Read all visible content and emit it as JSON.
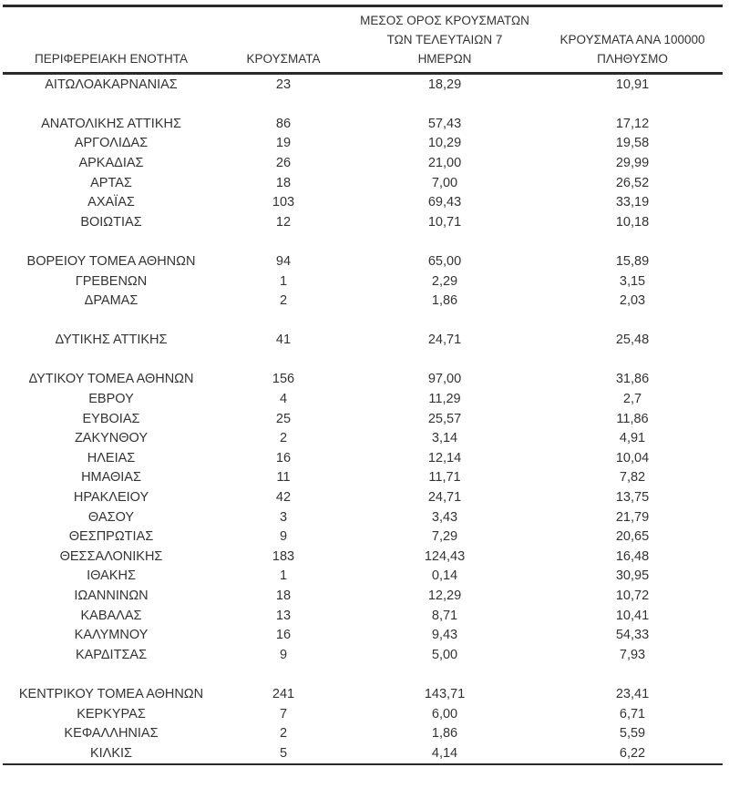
{
  "colors": {
    "background": "#ffffff",
    "text": "#333333",
    "rule": "#2a2a2a"
  },
  "table": {
    "columns": [
      {
        "key": "name",
        "label": "ΠΕΡΙΦΕΡΕΙΑΚΗ ΕΝΟΤΗΤΑ"
      },
      {
        "key": "cases",
        "label": "ΚΡΟΥΣΜΑΤΑ"
      },
      {
        "key": "avg7",
        "label": "ΜΕΣΟΣ ΟΡΟΣ ΚΡΟΥΣΜΑΤΩΝ\nΤΩΝ ΤΕΛΕΥΤΑΙΩΝ 7\nΗΜΕΡΩΝ"
      },
      {
        "key": "per100k",
        "label": "ΚΡΟΥΣΜΑΤΑ ΑΝΑ 100000\nΠΛΗΘΥΣΜΟ"
      }
    ],
    "rows": [
      {
        "name": "ΑΙΤΩΛΟΑΚΑΡΝΑΝΙΑΣ",
        "cases": "23",
        "avg7": "18,29",
        "per100k": "10,91"
      },
      {
        "spacer": true
      },
      {
        "name": "ΑΝΑΤΟΛΙΚΗΣ ΑΤΤΙΚΗΣ",
        "cases": "86",
        "avg7": "57,43",
        "per100k": "17,12"
      },
      {
        "name": "ΑΡΓΟΛΙΔΑΣ",
        "cases": "19",
        "avg7": "10,29",
        "per100k": "19,58"
      },
      {
        "name": "ΑΡΚΑΔΙΑΣ",
        "cases": "26",
        "avg7": "21,00",
        "per100k": "29,99"
      },
      {
        "name": "ΑΡΤΑΣ",
        "cases": "18",
        "avg7": "7,00",
        "per100k": "26,52"
      },
      {
        "name": "ΑΧΑΪΑΣ",
        "cases": "103",
        "avg7": "69,43",
        "per100k": "33,19"
      },
      {
        "name": "ΒΟΙΩΤΙΑΣ",
        "cases": "12",
        "avg7": "10,71",
        "per100k": "10,18"
      },
      {
        "spacer": true
      },
      {
        "name": "ΒΟΡΕΙΟΥ ΤΟΜΕΑ ΑΘΗΝΩΝ",
        "cases": "94",
        "avg7": "65,00",
        "per100k": "15,89"
      },
      {
        "name": "ΓΡΕΒΕΝΩΝ",
        "cases": "1",
        "avg7": "2,29",
        "per100k": "3,15"
      },
      {
        "name": "ΔΡΑΜΑΣ",
        "cases": "2",
        "avg7": "1,86",
        "per100k": "2,03"
      },
      {
        "spacer": true
      },
      {
        "name": "ΔΥΤΙΚΗΣ ΑΤΤΙΚΗΣ",
        "cases": "41",
        "avg7": "24,71",
        "per100k": "25,48"
      },
      {
        "spacer": true
      },
      {
        "name": "ΔΥΤΙΚΟΥ ΤΟΜΕΑ ΑΘΗΝΩΝ",
        "cases": "156",
        "avg7": "97,00",
        "per100k": "31,86"
      },
      {
        "name": "ΕΒΡΟΥ",
        "cases": "4",
        "avg7": "11,29",
        "per100k": "2,7"
      },
      {
        "name": "ΕΥΒΟΙΑΣ",
        "cases": "25",
        "avg7": "25,57",
        "per100k": "11,86"
      },
      {
        "name": "ΖΑΚΥΝΘΟΥ",
        "cases": "2",
        "avg7": "3,14",
        "per100k": "4,91"
      },
      {
        "name": "ΗΛΕΙΑΣ",
        "cases": "16",
        "avg7": "12,14",
        "per100k": "10,04"
      },
      {
        "name": "ΗΜΑΘΙΑΣ",
        "cases": "11",
        "avg7": "11,71",
        "per100k": "7,82"
      },
      {
        "name": "ΗΡΑΚΛΕΙΟΥ",
        "cases": "42",
        "avg7": "24,71",
        "per100k": "13,75"
      },
      {
        "name": "ΘΑΣΟΥ",
        "cases": "3",
        "avg7": "3,43",
        "per100k": "21,79"
      },
      {
        "name": "ΘΕΣΠΡΩΤΙΑΣ",
        "cases": "9",
        "avg7": "7,29",
        "per100k": "20,65"
      },
      {
        "name": "ΘΕΣΣΑΛΟΝΙΚΗΣ",
        "cases": "183",
        "avg7": "124,43",
        "per100k": "16,48"
      },
      {
        "name": "ΙΘΑΚΗΣ",
        "cases": "1",
        "avg7": "0,14",
        "per100k": "30,95"
      },
      {
        "name": "ΙΩΑΝΝΙΝΩΝ",
        "cases": "18",
        "avg7": "12,29",
        "per100k": "10,72"
      },
      {
        "name": "ΚΑΒΑΛΑΣ",
        "cases": "13",
        "avg7": "8,71",
        "per100k": "10,41"
      },
      {
        "name": "ΚΑΛΥΜΝΟΥ",
        "cases": "16",
        "avg7": "9,43",
        "per100k": "54,33"
      },
      {
        "name": "ΚΑΡΔΙΤΣΑΣ",
        "cases": "9",
        "avg7": "5,00",
        "per100k": "7,93"
      },
      {
        "spacer": true
      },
      {
        "name": "ΚΕΝΤΡΙΚΟΥ ΤΟΜΕΑ ΑΘΗΝΩΝ",
        "cases": "241",
        "avg7": "143,71",
        "per100k": "23,41"
      },
      {
        "name": "ΚΕΡΚΥΡΑΣ",
        "cases": "7",
        "avg7": "6,00",
        "per100k": "6,71"
      },
      {
        "name": "ΚΕΦΑΛΛΗΝΙΑΣ",
        "cases": "2",
        "avg7": "1,86",
        "per100k": "5,59"
      },
      {
        "name": "ΚΙΛΚΙΣ",
        "cases": "5",
        "avg7": "4,14",
        "per100k": "6,22"
      }
    ]
  }
}
